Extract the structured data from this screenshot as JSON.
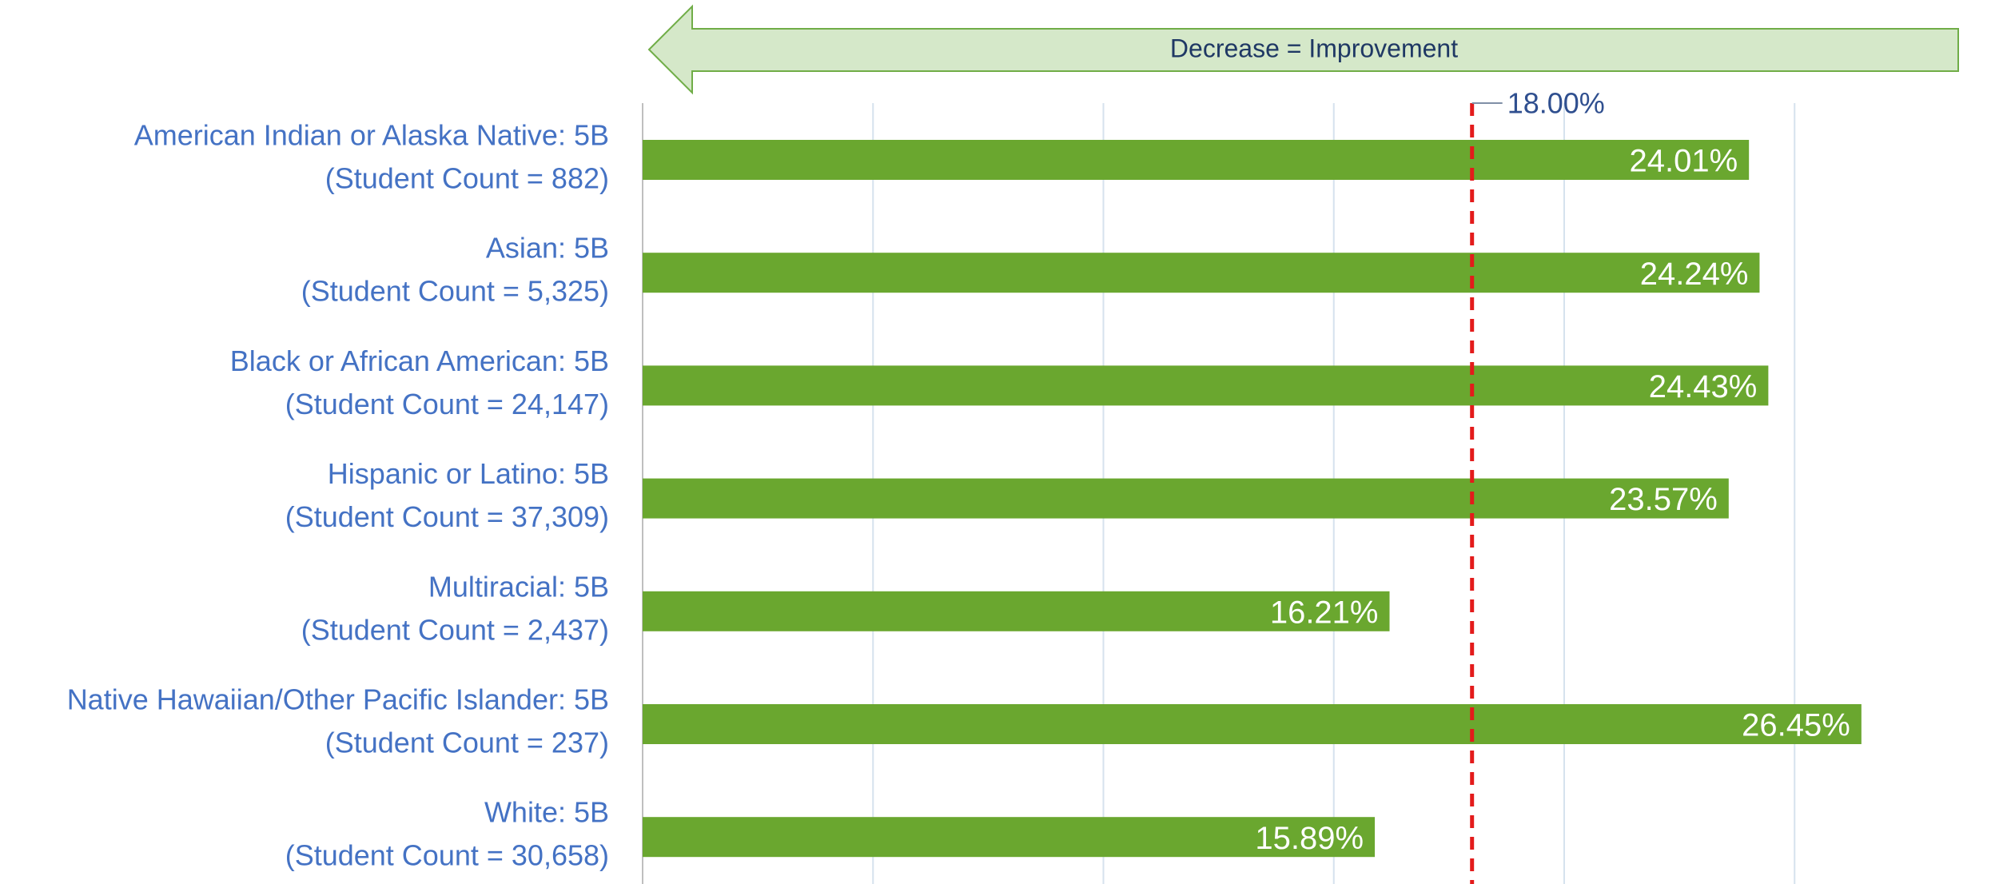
{
  "chart_data": {
    "type": "barh",
    "annotation": "Decrease = Improvement",
    "categories": [
      [
        "American Indian or Alaska Native: 5B",
        "(Student Count = 882)"
      ],
      [
        "Asian: 5B",
        "(Student Count = 5,325)"
      ],
      [
        "Black or African American: 5B",
        "(Student Count = 24,147)"
      ],
      [
        "Hispanic or Latino: 5B",
        "(Student Count = 37,309)"
      ],
      [
        "Multiracial: 5B",
        "(Student Count = 2,437)"
      ],
      [
        "Native Hawaiian/Other Pacific Islander: 5B",
        "(Student Count = 237)"
      ],
      [
        "White: 5B",
        "(Student Count = 30,658)"
      ]
    ],
    "values": [
      24.01,
      24.24,
      24.43,
      23.57,
      16.21,
      26.45,
      15.89
    ],
    "value_labels": [
      "24.01%",
      "24.24%",
      "24.43%",
      "23.57%",
      "16.21%",
      "26.45%",
      "15.89%"
    ],
    "color": "#6aa72f",
    "xlim": [
      0,
      29
    ],
    "xticks": [
      0,
      5,
      10,
      15,
      20,
      25
    ],
    "grid": true,
    "reference_line": {
      "value": 18,
      "label": "18.00%",
      "color": "#e31b1b"
    }
  }
}
